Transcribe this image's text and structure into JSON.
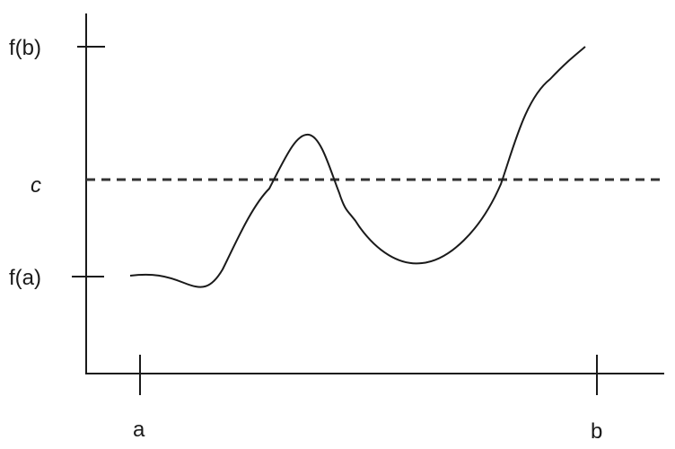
{
  "labels": {
    "fb": "f(b)",
    "c": "c",
    "fa": "f(a)",
    "a": "a",
    "b": "b"
  },
  "colors": {
    "line": "#1a1a1a",
    "dashed": "#333333"
  }
}
